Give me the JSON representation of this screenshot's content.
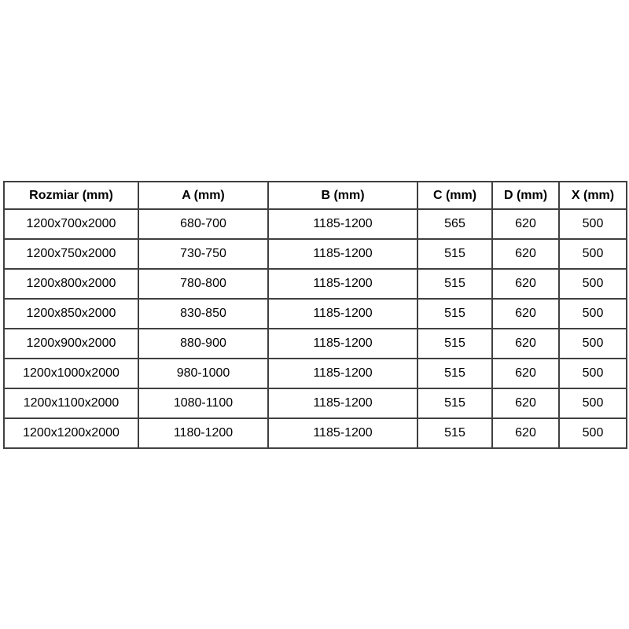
{
  "page": {
    "background_color": "#ffffff",
    "border_color": "#404040",
    "text_color": "#000000"
  },
  "table": {
    "name": "shower-enclosure-dimensions",
    "columns": [
      "Rozmiar (mm)",
      "A (mm)",
      "B (mm)",
      "C (mm)",
      "D (mm)",
      "X (mm)"
    ],
    "rows": [
      [
        "1200x700x2000",
        "680-700",
        "1185-1200",
        "565",
        "620",
        "500"
      ],
      [
        "1200x750x2000",
        "730-750",
        "1185-1200",
        "515",
        "620",
        "500"
      ],
      [
        "1200x800x2000",
        "780-800",
        "1185-1200",
        "515",
        "620",
        "500"
      ],
      [
        "1200x850x2000",
        "830-850",
        "1185-1200",
        "515",
        "620",
        "500"
      ],
      [
        "1200x900x2000",
        "880-900",
        "1185-1200",
        "515",
        "620",
        "500"
      ],
      [
        "1200x1000x2000",
        "980-1000",
        "1185-1200",
        "515",
        "620",
        "500"
      ],
      [
        "1200x1100x2000",
        "1080-1100",
        "1185-1200",
        "515",
        "620",
        "500"
      ],
      [
        "1200x1200x2000",
        "1180-1200",
        "1185-1200",
        "515",
        "620",
        "500"
      ]
    ]
  }
}
